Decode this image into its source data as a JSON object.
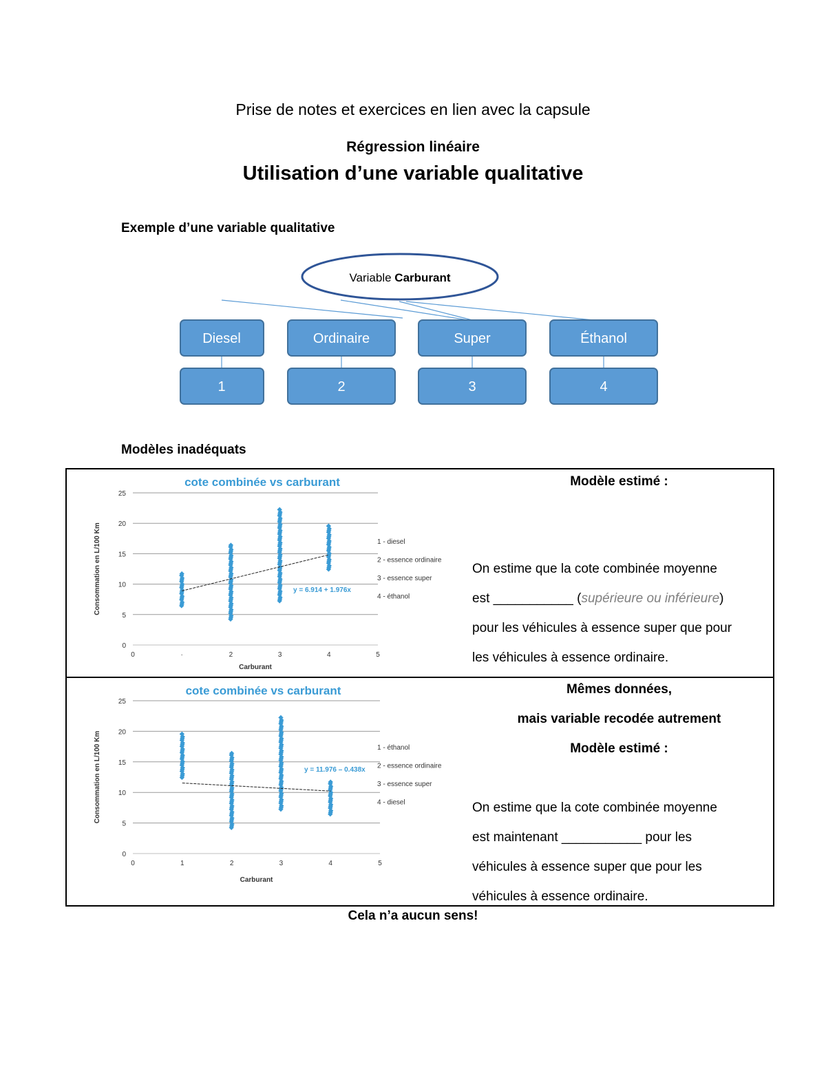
{
  "header": {
    "intro": "Prise de notes et exercices en lien avec la capsule",
    "subtitle": "Régression linéaire",
    "title": "Utilisation d’une variable qualitative"
  },
  "section1": {
    "heading": "Exemple d’une variable qualitative",
    "oval_prefix": "Variable ",
    "oval_bold": "Carburant",
    "categories": [
      "Diesel",
      "Ordinaire",
      "Super",
      "Éthanol"
    ],
    "codes": [
      "1",
      "2",
      "3",
      "4"
    ],
    "colors": {
      "box_fill": "#5b9bd5",
      "box_border": "#41719c",
      "oval_border": "#2f5597"
    }
  },
  "section2": {
    "heading": "Modèles inadéquats",
    "row1": {
      "heading": "Modèle estimé :",
      "line1": "On estime que la cote combinée moyenne",
      "line2_before": "est ___________ (",
      "line2_hint": "supérieure ou inférieure",
      "line2_after": ")",
      "line3": "pour les véhicules à essence super que pour",
      "line4": "les véhicules à essence ordinaire."
    },
    "row2": {
      "heading1": "Mêmes données,",
      "heading2": "mais variable recodée autrement",
      "heading3": "Modèle estimé :",
      "line1": "On estime que la cote combinée moyenne",
      "line2": "est maintenant ___________ pour les",
      "line3": "véhicules à essence super que pour les",
      "line4": "véhicules à essence ordinaire."
    },
    "conclusion": "Cela n’a aucun sens!"
  },
  "chart_data": [
    {
      "type": "scatter",
      "title": "cote combinée vs carburant",
      "xlabel": "Carburant",
      "ylabel": "Consommation en L/100 Km",
      "xlim": [
        0,
        5
      ],
      "ylim": [
        0,
        25
      ],
      "x_ticks": [
        "0",
        "·",
        "2",
        "3",
        "4",
        "5"
      ],
      "y_ticks": [
        "0",
        "5",
        "10",
        "15",
        "20",
        "25"
      ],
      "legend": [
        "1 - diesel",
        "2 - essence ordinaire",
        "3 - essence super",
        "4 - éthanol"
      ],
      "equation": "y = 6.914 + 1.976x",
      "trendline": {
        "intercept": 6.914,
        "slope": 1.976,
        "x_range": [
          1,
          4
        ]
      },
      "series": [
        {
          "x": 1,
          "y_range": [
            6.4,
            11.7
          ]
        },
        {
          "x": 2,
          "y_range": [
            4.2,
            16.4
          ]
        },
        {
          "x": 3,
          "y_range": [
            7.2,
            22.2
          ]
        },
        {
          "x": 4,
          "y_range": [
            12.4,
            19.5
          ]
        }
      ],
      "grid": true,
      "color": "#3a9bd5"
    },
    {
      "type": "scatter",
      "title": "cote combinée vs carburant",
      "xlabel": "Carburant",
      "ylabel": "Consommation en L/100 Km",
      "xlim": [
        0,
        5
      ],
      "ylim": [
        0,
        25
      ],
      "x_ticks": [
        "0",
        "1",
        "2",
        "3",
        "4",
        "5"
      ],
      "y_ticks": [
        "0",
        "5",
        "10",
        "15",
        "20",
        "25"
      ],
      "legend": [
        "1 - éthanol",
        "2 - essence ordinaire",
        "3 - essence super",
        "4 - diesel"
      ],
      "equation": "y = 11.976 – 0.438x",
      "trendline": {
        "intercept": 11.976,
        "slope": -0.438,
        "x_range": [
          1,
          4
        ]
      },
      "series": [
        {
          "x": 1,
          "y_range": [
            12.4,
            19.5
          ]
        },
        {
          "x": 2,
          "y_range": [
            4.2,
            16.4
          ]
        },
        {
          "x": 3,
          "y_range": [
            7.2,
            22.2
          ]
        },
        {
          "x": 4,
          "y_range": [
            6.4,
            11.7
          ]
        }
      ],
      "grid": true,
      "color": "#3a9bd5"
    }
  ]
}
